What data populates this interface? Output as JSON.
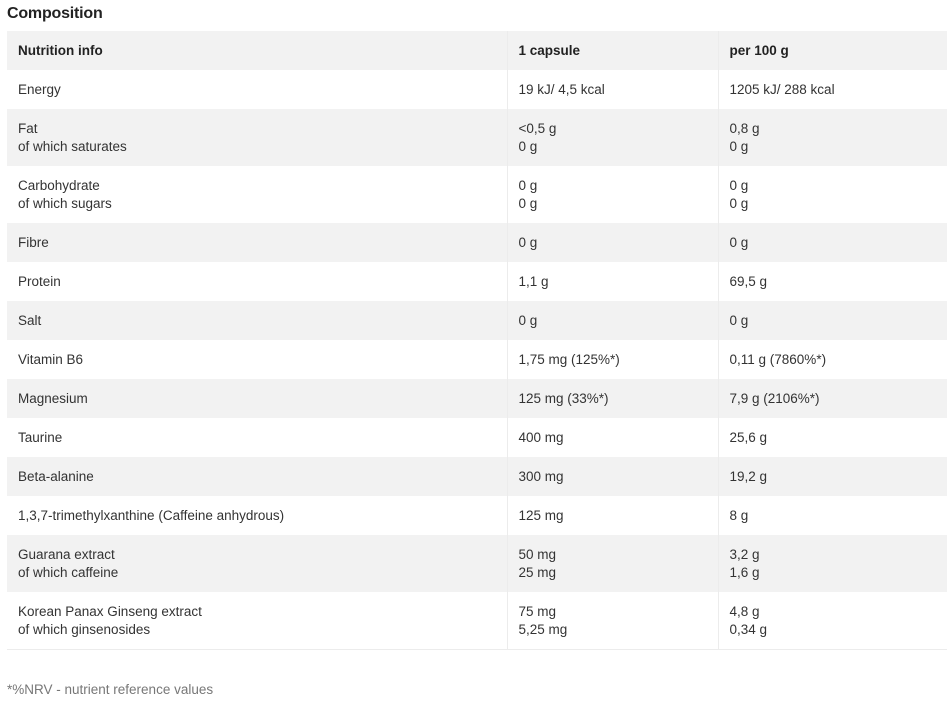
{
  "title": "Composition",
  "table": {
    "headers": [
      "Nutrition info",
      "1 capsule",
      "per 100 g"
    ],
    "rows": [
      {
        "name": [
          "Energy"
        ],
        "capsule": [
          "19 kJ/ 4,5 kcal"
        ],
        "per100": [
          "1205 kJ/  288 kcal"
        ]
      },
      {
        "name": [
          "Fat",
          "of which saturates"
        ],
        "capsule": [
          "<0,5 g",
          "0 g"
        ],
        "per100": [
          "0,8 g",
          "0 g"
        ]
      },
      {
        "name": [
          "Carbohydrate",
          "of which sugars"
        ],
        "capsule": [
          "0 g",
          "0 g"
        ],
        "per100": [
          "0 g",
          "0 g"
        ]
      },
      {
        "name": [
          "Fibre"
        ],
        "capsule": [
          "0 g"
        ],
        "per100": [
          "0 g"
        ]
      },
      {
        "name": [
          "Protein"
        ],
        "capsule": [
          "1,1 g"
        ],
        "per100": [
          "69,5 g"
        ]
      },
      {
        "name": [
          "Salt"
        ],
        "capsule": [
          "0 g"
        ],
        "per100": [
          "0 g"
        ]
      },
      {
        "name": [
          "Vitamin B6"
        ],
        "capsule": [
          "1,75 mg (125%*)"
        ],
        "per100": [
          "0,11 g (7860%*)"
        ]
      },
      {
        "name": [
          "Magnesium"
        ],
        "capsule": [
          "125 mg (33%*)"
        ],
        "per100": [
          "7,9 g (2106%*)"
        ]
      },
      {
        "name": [
          "Taurine"
        ],
        "capsule": [
          "400 mg"
        ],
        "per100": [
          "25,6 g"
        ]
      },
      {
        "name": [
          "Beta-alanine"
        ],
        "capsule": [
          "300 mg"
        ],
        "per100": [
          "19,2 g"
        ]
      },
      {
        "name": [
          "1,3,7-trimethylxanthine (Caffeine anhydrous)"
        ],
        "capsule": [
          "125 mg"
        ],
        "per100": [
          "8 g"
        ]
      },
      {
        "name": [
          "Guarana extract",
          "of which caffeine"
        ],
        "capsule": [
          "50 mg",
          "25 mg"
        ],
        "per100": [
          "3,2 g",
          "1,6 g"
        ]
      },
      {
        "name": [
          "Korean Panax Ginseng extract",
          "of which ginsenosides"
        ],
        "capsule": [
          "75 mg",
          "5,25 mg"
        ],
        "per100": [
          "4,8 g",
          "0,34 g"
        ]
      }
    ]
  },
  "footnote": "*%NRV - nutrient reference values"
}
